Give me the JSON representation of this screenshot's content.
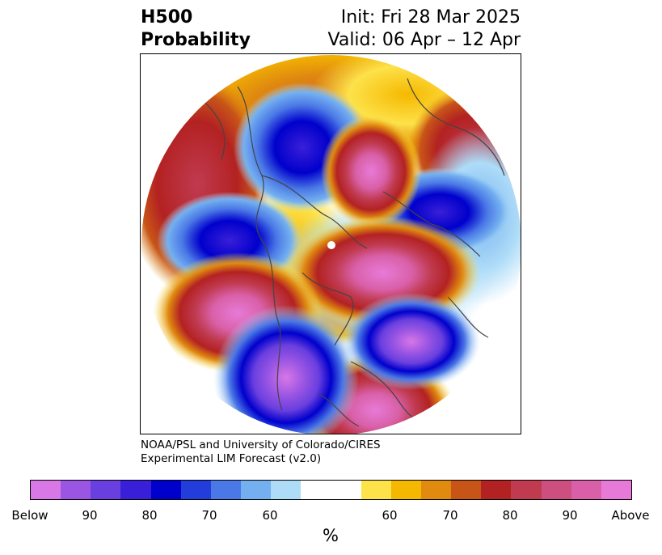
{
  "header": {
    "variable": "H500",
    "product": "Probability",
    "init": "Init: Fri 28 Mar 2025",
    "valid": "Valid: 06 Apr – 12 Apr"
  },
  "credit": {
    "line1": "NOAA/PSL and University of Colorado/CIRES",
    "line2": "Experimental LIM Forecast (v2.0)"
  },
  "colorbar": {
    "below_colors": [
      "#d877e6",
      "#9a55e3",
      "#6a3fdf",
      "#3a1fd8",
      "#0000cc",
      "#223dd9",
      "#4a78e6",
      "#74b0f0",
      "#aedcf8"
    ],
    "neutral_color": "#ffffff",
    "above_colors": [
      "#fde24a",
      "#f5b800",
      "#e08a10",
      "#c85518",
      "#b32222",
      "#c03a50",
      "#cc4f80",
      "#d960a8",
      "#e77ad8"
    ],
    "tick_labels": [
      "Below",
      "90",
      "80",
      "70",
      "60",
      "60",
      "70",
      "80",
      "90",
      "Above"
    ],
    "unit": "%"
  },
  "map": {
    "projection": "north-polar stereographic",
    "contour_lines": "coastlines and political boundaries",
    "line_color": "#444444"
  }
}
